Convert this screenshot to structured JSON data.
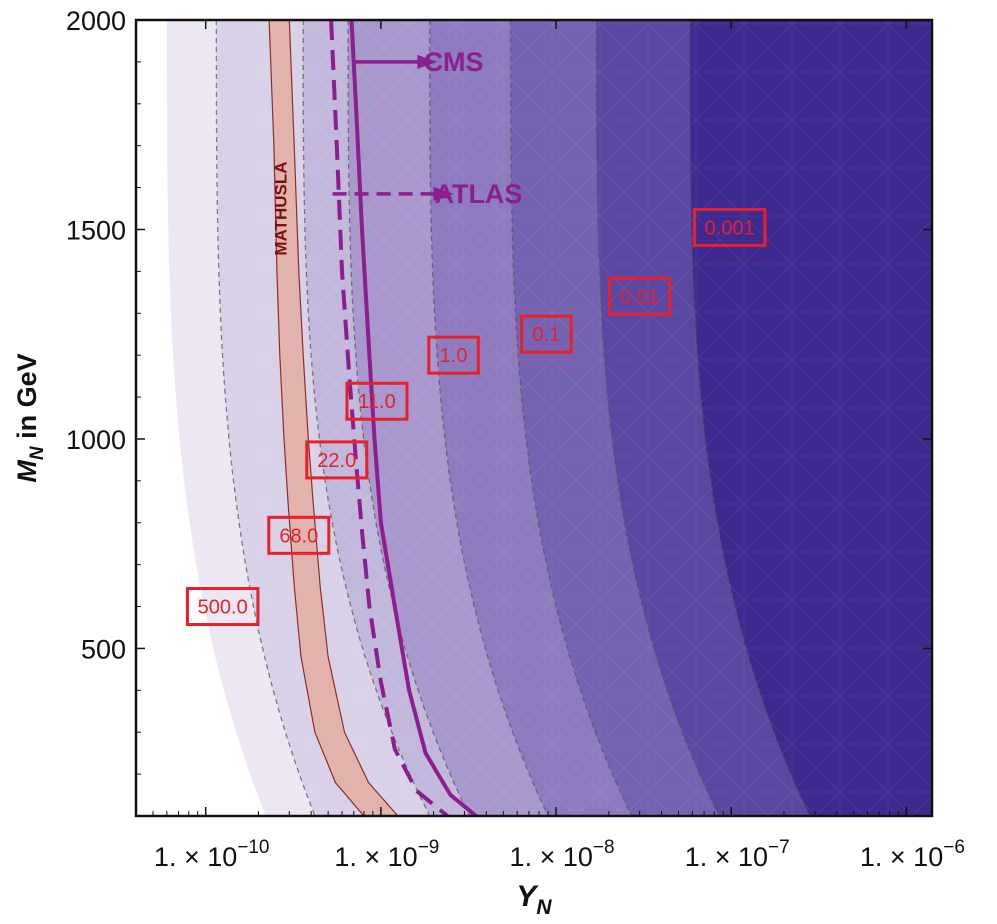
{
  "chart_data": {
    "type": "contour",
    "xlabel": "Y",
    "xlabel_sub": "N",
    "ylabel": "M",
    "ylabel_sub": "N",
    "ylabel_rest": " in GeV",
    "x_scale": "log",
    "xlim": [
      4e-11,
      1.4e-06
    ],
    "ylim": [
      100,
      2000
    ],
    "x_ticks": [
      {
        "value": 1e-10,
        "mant": "1. × 10",
        "exp": "−10"
      },
      {
        "value": 1e-09,
        "mant": "1. × 10",
        "exp": "−9"
      },
      {
        "value": 1e-08,
        "mant": "1. × 10",
        "exp": "−8"
      },
      {
        "value": 1e-07,
        "mant": "1. × 10",
        "exp": "−7"
      },
      {
        "value": 1e-06,
        "mant": "1. × 10",
        "exp": "−6"
      }
    ],
    "y_ticks": [
      {
        "value": 500,
        "label": "500"
      },
      {
        "value": 1000,
        "label": "1000"
      },
      {
        "value": 1500,
        "label": "1500"
      },
      {
        "value": 2000,
        "label": "2000"
      }
    ],
    "contour_bands": [
      {
        "color": "#ece7f3",
        "y_at_high_mass": 6e-11,
        "y_at_low_mass": 2.2e-10
      },
      {
        "color": "#d8d1e8",
        "y_at_high_mass": 1.15e-10,
        "y_at_low_mass": 4.2e-10
      },
      {
        "color": "#c2b8dc",
        "y_at_high_mass": 3.6e-10,
        "y_at_low_mass": 1.9e-09
      },
      {
        "color": "#a898cd",
        "y_at_high_mass": 6.5e-10,
        "y_at_low_mass": 3.2e-09
      },
      {
        "color": "#8e7bbf",
        "y_at_high_mass": 1.9e-09,
        "y_at_low_mass": 9e-09
      },
      {
        "color": "#7562b1",
        "y_at_high_mass": 5.5e-09,
        "y_at_low_mass": 2.7e-08
      },
      {
        "color": "#5b46a2",
        "y_at_high_mass": 1.7e-08,
        "y_at_low_mass": 8.5e-08
      },
      {
        "color": "#3e2a8f",
        "y_at_high_mass": 5.8e-08,
        "y_at_low_mass": 2.8e-07
      }
    ],
    "contour_labels": [
      {
        "label": "500.0",
        "x": 1.25e-10,
        "y": 600
      },
      {
        "label": "68.0",
        "x": 3.4e-10,
        "y": 770
      },
      {
        "label": "22.0",
        "x": 5.6e-10,
        "y": 950
      },
      {
        "label": "11.0",
        "x": 9.5e-10,
        "y": 1090
      },
      {
        "label": "1.0",
        "x": 2.6e-09,
        "y": 1200
      },
      {
        "label": "0.1",
        "x": 8.8e-09,
        "y": 1250
      },
      {
        "label": "0.01",
        "x": 3e-08,
        "y": 1340
      },
      {
        "label": "0.001",
        "x": 9.8e-08,
        "y": 1505
      }
    ],
    "series": [
      {
        "name": "CMS",
        "style": "solid",
        "color": "#8b1f8e",
        "points": [
          [
            6.8e-10,
            2000
          ],
          [
            7.2e-10,
            1800
          ],
          [
            7.8e-10,
            1500
          ],
          [
            8.6e-10,
            1200
          ],
          [
            9.2e-10,
            1000
          ],
          [
            1e-09,
            800
          ],
          [
            1.2e-09,
            600
          ],
          [
            1.45e-09,
            400
          ],
          [
            1.8e-09,
            250
          ],
          [
            2.5e-09,
            150
          ],
          [
            3.5e-09,
            100
          ]
        ]
      },
      {
        "name": "ATLAS",
        "style": "dashed",
        "color": "#8b1f8e",
        "points": [
          [
            5.2e-10,
            2000
          ],
          [
            5.6e-10,
            1700
          ],
          [
            6e-10,
            1400
          ],
          [
            6.6e-10,
            1150
          ],
          [
            7.2e-10,
            950
          ],
          [
            7.8e-10,
            780
          ],
          [
            8.6e-10,
            600
          ],
          [
            1e-09,
            420
          ],
          [
            1.2e-09,
            260
          ],
          [
            1.6e-09,
            160
          ],
          [
            2.4e-09,
            100
          ]
        ]
      }
    ],
    "mathusla_band": {
      "label": "MATHUSLA",
      "color": "#e3b0a6",
      "left_edge": [
        [
          2.3e-10,
          2000
        ],
        [
          2.45e-10,
          1700
        ],
        [
          2.55e-10,
          1400
        ],
        [
          2.65e-10,
          1200
        ],
        [
          2.8e-10,
          1000
        ],
        [
          2.95e-10,
          850
        ],
        [
          3.2e-10,
          650
        ],
        [
          3.5e-10,
          480
        ],
        [
          4.2e-10,
          300
        ],
        [
          5.5e-10,
          180
        ],
        [
          8e-10,
          100
        ]
      ],
      "right_edge": [
        [
          3e-10,
          2000
        ],
        [
          3.2e-10,
          1700
        ],
        [
          3.4e-10,
          1400
        ],
        [
          3.6e-10,
          1200
        ],
        [
          3.85e-10,
          1000
        ],
        [
          4.1e-10,
          850
        ],
        [
          4.5e-10,
          650
        ],
        [
          5e-10,
          480
        ],
        [
          6.2e-10,
          300
        ],
        [
          8.5e-10,
          180
        ],
        [
          1.25e-09,
          100
        ]
      ]
    },
    "legend": [
      {
        "label": "CMS",
        "style": "solid"
      },
      {
        "label": "ATLAS",
        "style": "dashed"
      }
    ]
  }
}
